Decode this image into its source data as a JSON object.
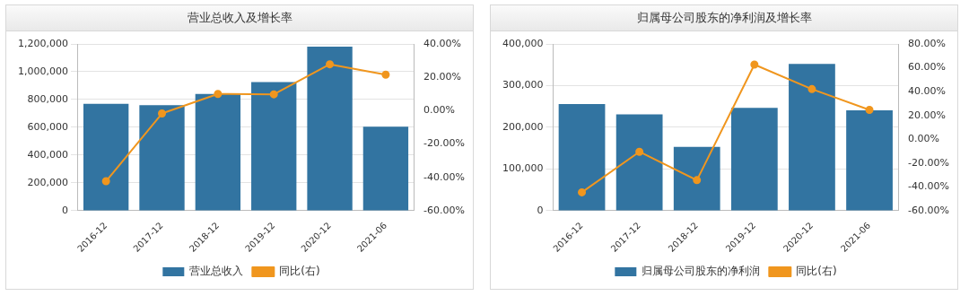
{
  "chart_data": [
    {
      "type": "bar",
      "title": "营业总收入及增长率",
      "categories": [
        "2016-12",
        "2017-12",
        "2018-12",
        "2019-12",
        "2020-12",
        "2021-06"
      ],
      "series": [
        {
          "name": "营业总收入",
          "color": "#3274a1",
          "values": [
            770000,
            760000,
            840000,
            925000,
            1180000,
            605000
          ]
        },
        {
          "name": "同比(右)",
          "type": "line",
          "axis": "y2",
          "color": "#f0961e",
          "values": [
            -42.3,
            -1.7,
            10.0,
            9.8,
            27.8,
            21.6
          ]
        }
      ],
      "ylim": [
        0,
        1200000
      ],
      "yticks": [
        {
          "value": 0,
          "label": "0"
        },
        {
          "value": 200000,
          "label": "200,000"
        },
        {
          "value": 400000,
          "label": "400,000"
        },
        {
          "value": 600000,
          "label": "600,000"
        },
        {
          "value": 800000,
          "label": "800,000"
        },
        {
          "value": 1000000,
          "label": "1,000,000"
        },
        {
          "value": 1200000,
          "label": "1,200,000"
        }
      ],
      "y2lim": [
        -60,
        40
      ],
      "y2ticks": [
        {
          "value": -60,
          "label": "-60.00%"
        },
        {
          "value": -40,
          "label": "-40.00%"
        },
        {
          "value": -20,
          "label": "-20.00%"
        },
        {
          "value": 0,
          "label": "0.00%"
        },
        {
          "value": 20,
          "label": "20.00%"
        },
        {
          "value": 40,
          "label": "40.00%"
        }
      ],
      "grid": "y",
      "legend": "bottom",
      "marker": "circle"
    },
    {
      "type": "bar",
      "title": "归属母公司股东的净利润及增长率",
      "categories": [
        "2016-12",
        "2017-12",
        "2018-12",
        "2019-12",
        "2020-12",
        "2021-06"
      ],
      "series": [
        {
          "name": "归属母公司股东的净利润",
          "color": "#3274a1",
          "values": [
            256000,
            231000,
            153000,
            247000,
            352000,
            241000
          ]
        },
        {
          "name": "同比(右)",
          "type": "line",
          "axis": "y2",
          "color": "#f0961e",
          "values": [
            -44.5,
            -10.5,
            -34.3,
            62.7,
            42.1,
            24.7
          ]
        }
      ],
      "ylim": [
        0,
        400000
      ],
      "yticks": [
        {
          "value": 0,
          "label": "0"
        },
        {
          "value": 100000,
          "label": "100,000"
        },
        {
          "value": 200000,
          "label": "200,000"
        },
        {
          "value": 300000,
          "label": "300,000"
        },
        {
          "value": 400000,
          "label": "400,000"
        }
      ],
      "y2lim": [
        -60,
        80
      ],
      "y2ticks": [
        {
          "value": -60,
          "label": "-60.00%"
        },
        {
          "value": -40,
          "label": "-40.00%"
        },
        {
          "value": -20,
          "label": "-20.00%"
        },
        {
          "value": 0,
          "label": "0.00%"
        },
        {
          "value": 20,
          "label": "20.00%"
        },
        {
          "value": 40,
          "label": "40.00%"
        },
        {
          "value": 60,
          "label": "60.00%"
        },
        {
          "value": 80,
          "label": "80.00%"
        }
      ],
      "grid": "y",
      "legend": "bottom",
      "marker": "circle"
    }
  ]
}
